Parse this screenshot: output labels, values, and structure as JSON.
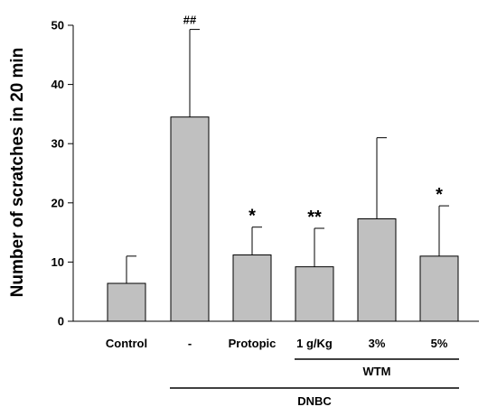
{
  "chart_data": {
    "type": "bar",
    "title": "",
    "xlabel": "",
    "ylabel": "Number of scratches in 20 min",
    "ylim": [
      0,
      50
    ],
    "yticks": [
      0,
      10,
      20,
      30,
      40,
      50
    ],
    "grid": false,
    "categories": [
      "Control",
      "-",
      "Protopic",
      "1 g/Kg",
      "3%",
      "5%"
    ],
    "values": [
      6.4,
      34.5,
      11.2,
      9.2,
      17.3,
      11.0
    ],
    "error_upper": [
      11.0,
      49.3,
      15.9,
      15.7,
      31.0,
      19.5
    ],
    "significance": [
      "",
      "##",
      "*",
      "**",
      "",
      "*"
    ],
    "groups": [
      {
        "label": "WTM",
        "from_category": "1 g/Kg",
        "to_category": "5%"
      },
      {
        "label": "DNBC",
        "from_category": "-",
        "to_category": "5%"
      }
    ],
    "bar_color": "#c0c0c0"
  }
}
